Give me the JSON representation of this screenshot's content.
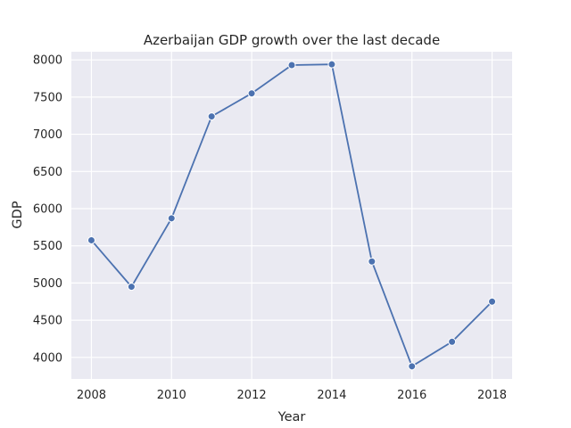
{
  "chart_data": {
    "type": "line",
    "title": "Azerbaijan GDP growth over the last decade",
    "xlabel": "Year",
    "ylabel": "GDP",
    "x": [
      2008,
      2009,
      2010,
      2011,
      2012,
      2013,
      2014,
      2015,
      2016,
      2017,
      2018
    ],
    "series": [
      {
        "values": [
          5575,
          4950,
          5870,
          7240,
          7550,
          7930,
          7940,
          5290,
          3880,
          4210,
          4750
        ]
      }
    ],
    "xlim": [
      2007.5,
      2018.5
    ],
    "ylim": [
      3710,
      8110
    ],
    "xticks": [
      2008,
      2010,
      2012,
      2014,
      2016,
      2018
    ],
    "yticks": [
      4000,
      4500,
      5000,
      5500,
      6000,
      6500,
      7000,
      7500,
      8000
    ],
    "grid": true,
    "colors": {
      "background": "#eaeaf2",
      "grid": "#ffffff",
      "line": "#4c72b0"
    }
  }
}
